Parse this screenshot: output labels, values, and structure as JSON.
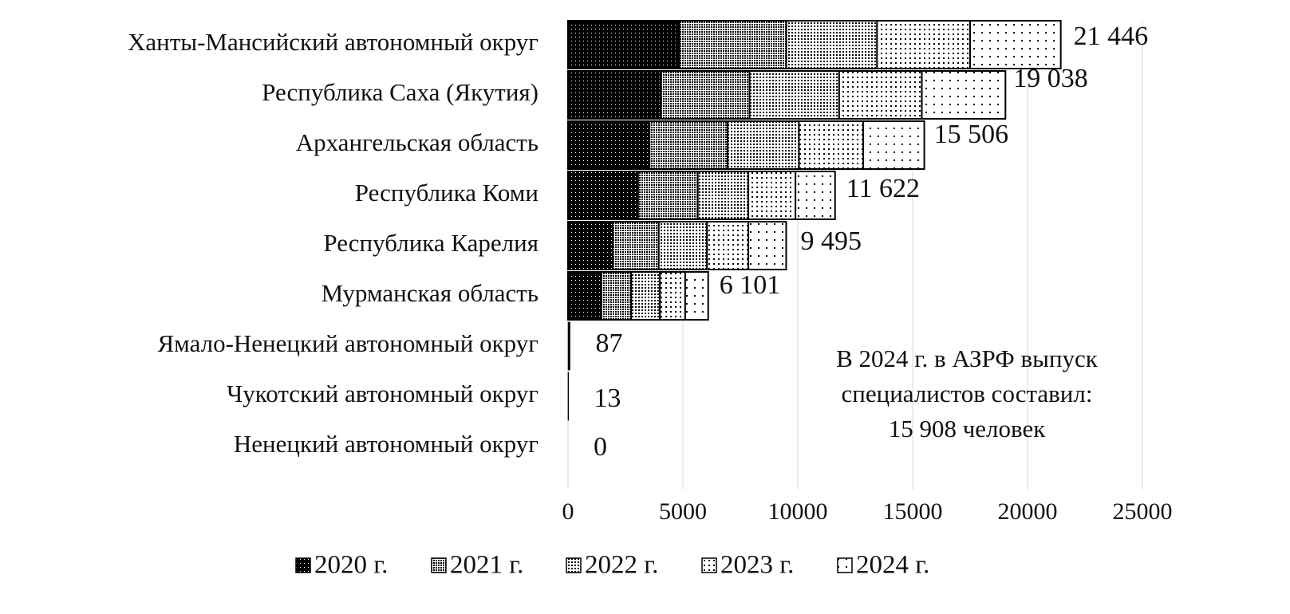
{
  "chart_data": {
    "type": "bar",
    "orientation": "horizontal",
    "stacked": true,
    "categories": [
      "Ханты-Мансийский автономный округ",
      "Республика Саха (Якутия)",
      "Архангельская область",
      "Республика Коми",
      "Республика Карелия",
      "Мурманская область",
      "Ямало-Ненецкий автономный округ",
      "Чукотский автономный округ",
      "Ненецкий автономный округ"
    ],
    "series": [
      {
        "name": "2020 г.",
        "values": [
          4850,
          4050,
          3550,
          3050,
          1950,
          1450,
          20,
          4,
          0
        ]
      },
      {
        "name": "2021 г.",
        "values": [
          4650,
          3850,
          3400,
          2600,
          2000,
          1300,
          18,
          3,
          0
        ]
      },
      {
        "name": "2022 г.",
        "values": [
          3950,
          3900,
          3100,
          2200,
          2100,
          1250,
          17,
          2,
          0
        ]
      },
      {
        "name": "2023 г.",
        "values": [
          4050,
          3600,
          2800,
          2050,
          1800,
          1100,
          16,
          2,
          0
        ]
      },
      {
        "name": "2024 г.",
        "values": [
          3946,
          3638,
          2656,
          1722,
          1645,
          1001,
          16,
          2,
          0
        ]
      }
    ],
    "totals": [
      "21 446",
      "19 038",
      "15 506",
      "11 622",
      "9 495",
      "6 101",
      "87",
      "13",
      "0"
    ],
    "xlim": [
      0,
      25000
    ],
    "xticks": [
      "0",
      "5000",
      "10000",
      "15000",
      "20000",
      "25000"
    ],
    "grid": "vertical",
    "legend_position": "bottom",
    "annotation": [
      "В 2024 г. в АЗРФ выпуск",
      "специалистов составил:",
      "15 908 человек"
    ]
  }
}
